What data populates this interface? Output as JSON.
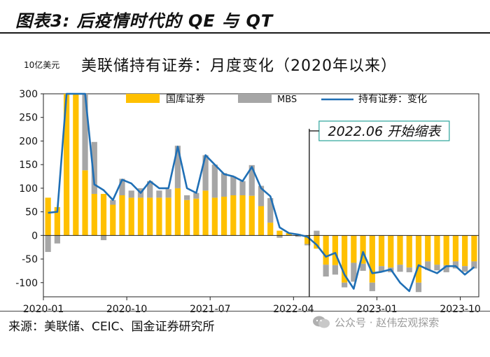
{
  "header": {
    "title": "图表3: 后疫情时代的 QE 与 QT"
  },
  "chart_data": {
    "type": "bar+line",
    "title": "美联储持有证券：月度变化（2020年以来）",
    "unit_label": "10亿美元",
    "ylim": [
      -130,
      300
    ],
    "yticks": [
      -100,
      -50,
      0,
      50,
      100,
      150,
      200,
      250,
      300
    ],
    "xtick_labels": [
      "2020-01",
      "2020-10",
      "2021-07",
      "2022-04",
      "2023-01",
      "2023-10"
    ],
    "xtick_indices": [
      0,
      9,
      18,
      27,
      36,
      45
    ],
    "months": [
      "2020-01",
      "2020-02",
      "2020-03",
      "2020-04",
      "2020-05",
      "2020-06",
      "2020-07",
      "2020-08",
      "2020-09",
      "2020-10",
      "2020-11",
      "2020-12",
      "2021-01",
      "2021-02",
      "2021-03",
      "2021-04",
      "2021-05",
      "2021-06",
      "2021-07",
      "2021-08",
      "2021-09",
      "2021-10",
      "2021-11",
      "2021-12",
      "2022-01",
      "2022-02",
      "2022-03",
      "2022-04",
      "2022-05",
      "2022-06",
      "2022-07",
      "2022-08",
      "2022-09",
      "2022-10",
      "2022-11",
      "2022-12",
      "2023-01",
      "2023-02",
      "2023-03",
      "2023-04",
      "2023-05",
      "2023-06",
      "2023-07",
      "2023-08",
      "2023-09",
      "2023-10",
      "2023-11"
    ],
    "series": [
      {
        "name": "国库证券",
        "type": "bar",
        "color": "#FFC000",
        "values": [
          80,
          60,
          300,
          300,
          138,
          88,
          88,
          65,
          85,
          80,
          80,
          80,
          80,
          80,
          100,
          75,
          78,
          95,
          80,
          82,
          85,
          85,
          84,
          62,
          27,
          10,
          5,
          3,
          -18,
          -28,
          -62,
          -63,
          -100,
          -58,
          -60,
          -100,
          -65,
          -68,
          -62,
          -68,
          -100,
          -55,
          -62,
          -63,
          -55,
          -65,
          -55
        ]
      },
      {
        "name": "MBS",
        "type": "bar",
        "color": "#A6A6A6",
        "values": [
          -35,
          -17,
          0,
          0,
          162,
          110,
          -10,
          10,
          35,
          15,
          20,
          35,
          15,
          18,
          90,
          10,
          12,
          75,
          70,
          50,
          40,
          30,
          65,
          43,
          52,
          -5,
          0,
          -3,
          -3,
          10,
          -25,
          -20,
          -10,
          -40,
          -15,
          -18,
          -12,
          -10,
          -15,
          -10,
          -20,
          -18,
          -12,
          -15,
          -15,
          -12,
          -15
        ]
      },
      {
        "name": "持有证券：变化",
        "type": "line",
        "color": "#1F6FB5",
        "values": [
          48,
          50,
          300,
          300,
          300,
          108,
          96,
          75,
          118,
          110,
          90,
          115,
          100,
          100,
          188,
          100,
          90,
          170,
          150,
          130,
          125,
          115,
          145,
          100,
          83,
          17,
          5,
          2,
          -3,
          -20,
          -45,
          -37,
          -83,
          -113,
          -35,
          -80,
          -77,
          -72,
          -100,
          -118,
          -63,
          -72,
          -80,
          -65,
          -65,
          -83,
          -67
        ]
      }
    ],
    "annotation": {
      "text": "2022.06 开始缩表",
      "at_month": "2022-06"
    }
  },
  "source": "来源：美联储、CEIC、国金证券研究所",
  "watermark": "公众号 · 赵伟宏观探索"
}
